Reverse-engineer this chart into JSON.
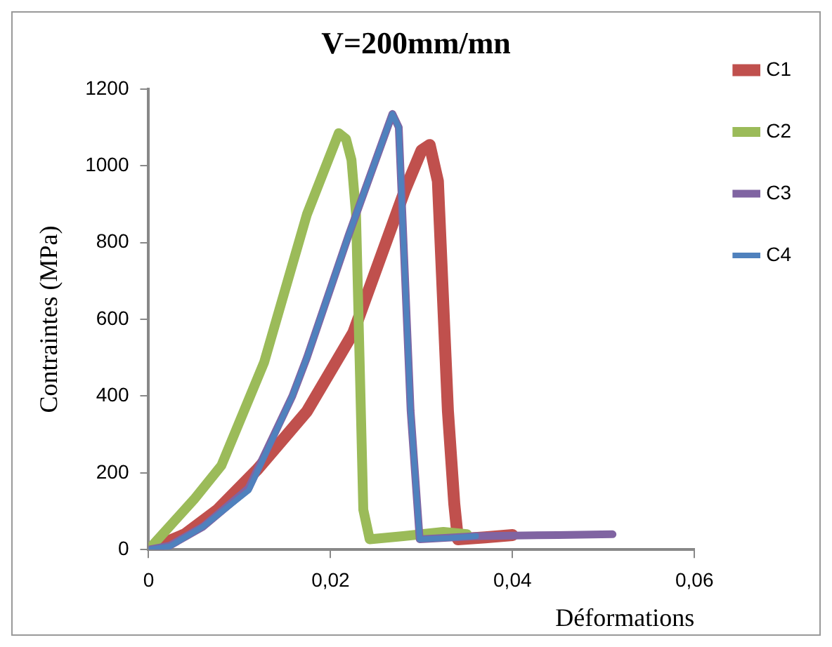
{
  "chart_data": {
    "type": "line",
    "title": "V=200mm/mn",
    "xlabel": "Déformations",
    "ylabel": "Contraintes (MPa)",
    "xlim": [
      0,
      0.06
    ],
    "xticks": [
      0,
      {
        "value": 0.02,
        "label": "0,02"
      },
      {
        "value": 0.04,
        "label": "0,04"
      },
      {
        "value": 0.06,
        "label": "0,06"
      }
    ],
    "ylim": [
      0,
      1200
    ],
    "yticks": [
      0,
      200,
      400,
      600,
      800,
      1000,
      1200
    ],
    "grid": false,
    "legend": "right",
    "marker": "none",
    "line_style": "solid",
    "series": [
      {
        "name": "C1",
        "color": "#c0504d",
        "x": [
          0,
          0.004,
          0.0076,
          0.012,
          0.0174,
          0.0225,
          0.0282,
          0.03,
          0.0309,
          0.0318,
          0.0329,
          0.0336,
          0.034,
          0.037,
          0.04
        ],
        "values": [
          0,
          40,
          104,
          210,
          360,
          565,
          938,
          1040,
          1054,
          960,
          362,
          120,
          27,
          32,
          38
        ]
      },
      {
        "name": "C2",
        "color": "#9bbb59",
        "x": [
          0,
          0.005,
          0.008,
          0.0127,
          0.0174,
          0.0209,
          0.0217,
          0.0223,
          0.0228,
          0.0236,
          0.0243,
          0.028,
          0.0324,
          0.035
        ],
        "values": [
          0,
          131,
          219,
          488,
          873,
          1085,
          1070,
          1015,
          873,
          104,
          27,
          35,
          46,
          40
        ]
      },
      {
        "name": "C3",
        "color": "#8064a2",
        "x": [
          0,
          0.0023,
          0.006,
          0.011,
          0.0158,
          0.0174,
          0.022,
          0.0268,
          0.0275,
          0.0279,
          0.0288,
          0.0298,
          0.036,
          0.045,
          0.051
        ],
        "values": [
          0,
          10,
          60,
          160,
          400,
          500,
          820,
          1135,
          1100,
          873,
          362,
          27,
          35,
          38,
          40
        ]
      },
      {
        "name": "C4",
        "color": "#4f81bd",
        "x": [
          0,
          0.0023,
          0.006,
          0.011,
          0.0158,
          0.0174,
          0.022,
          0.0268,
          0.0275,
          0.0279,
          0.0288,
          0.0298,
          0.033,
          0.036
        ],
        "values": [
          0,
          8,
          60,
          154,
          400,
          500,
          820,
          1135,
          1100,
          873,
          362,
          27,
          30,
          35
        ]
      }
    ]
  }
}
